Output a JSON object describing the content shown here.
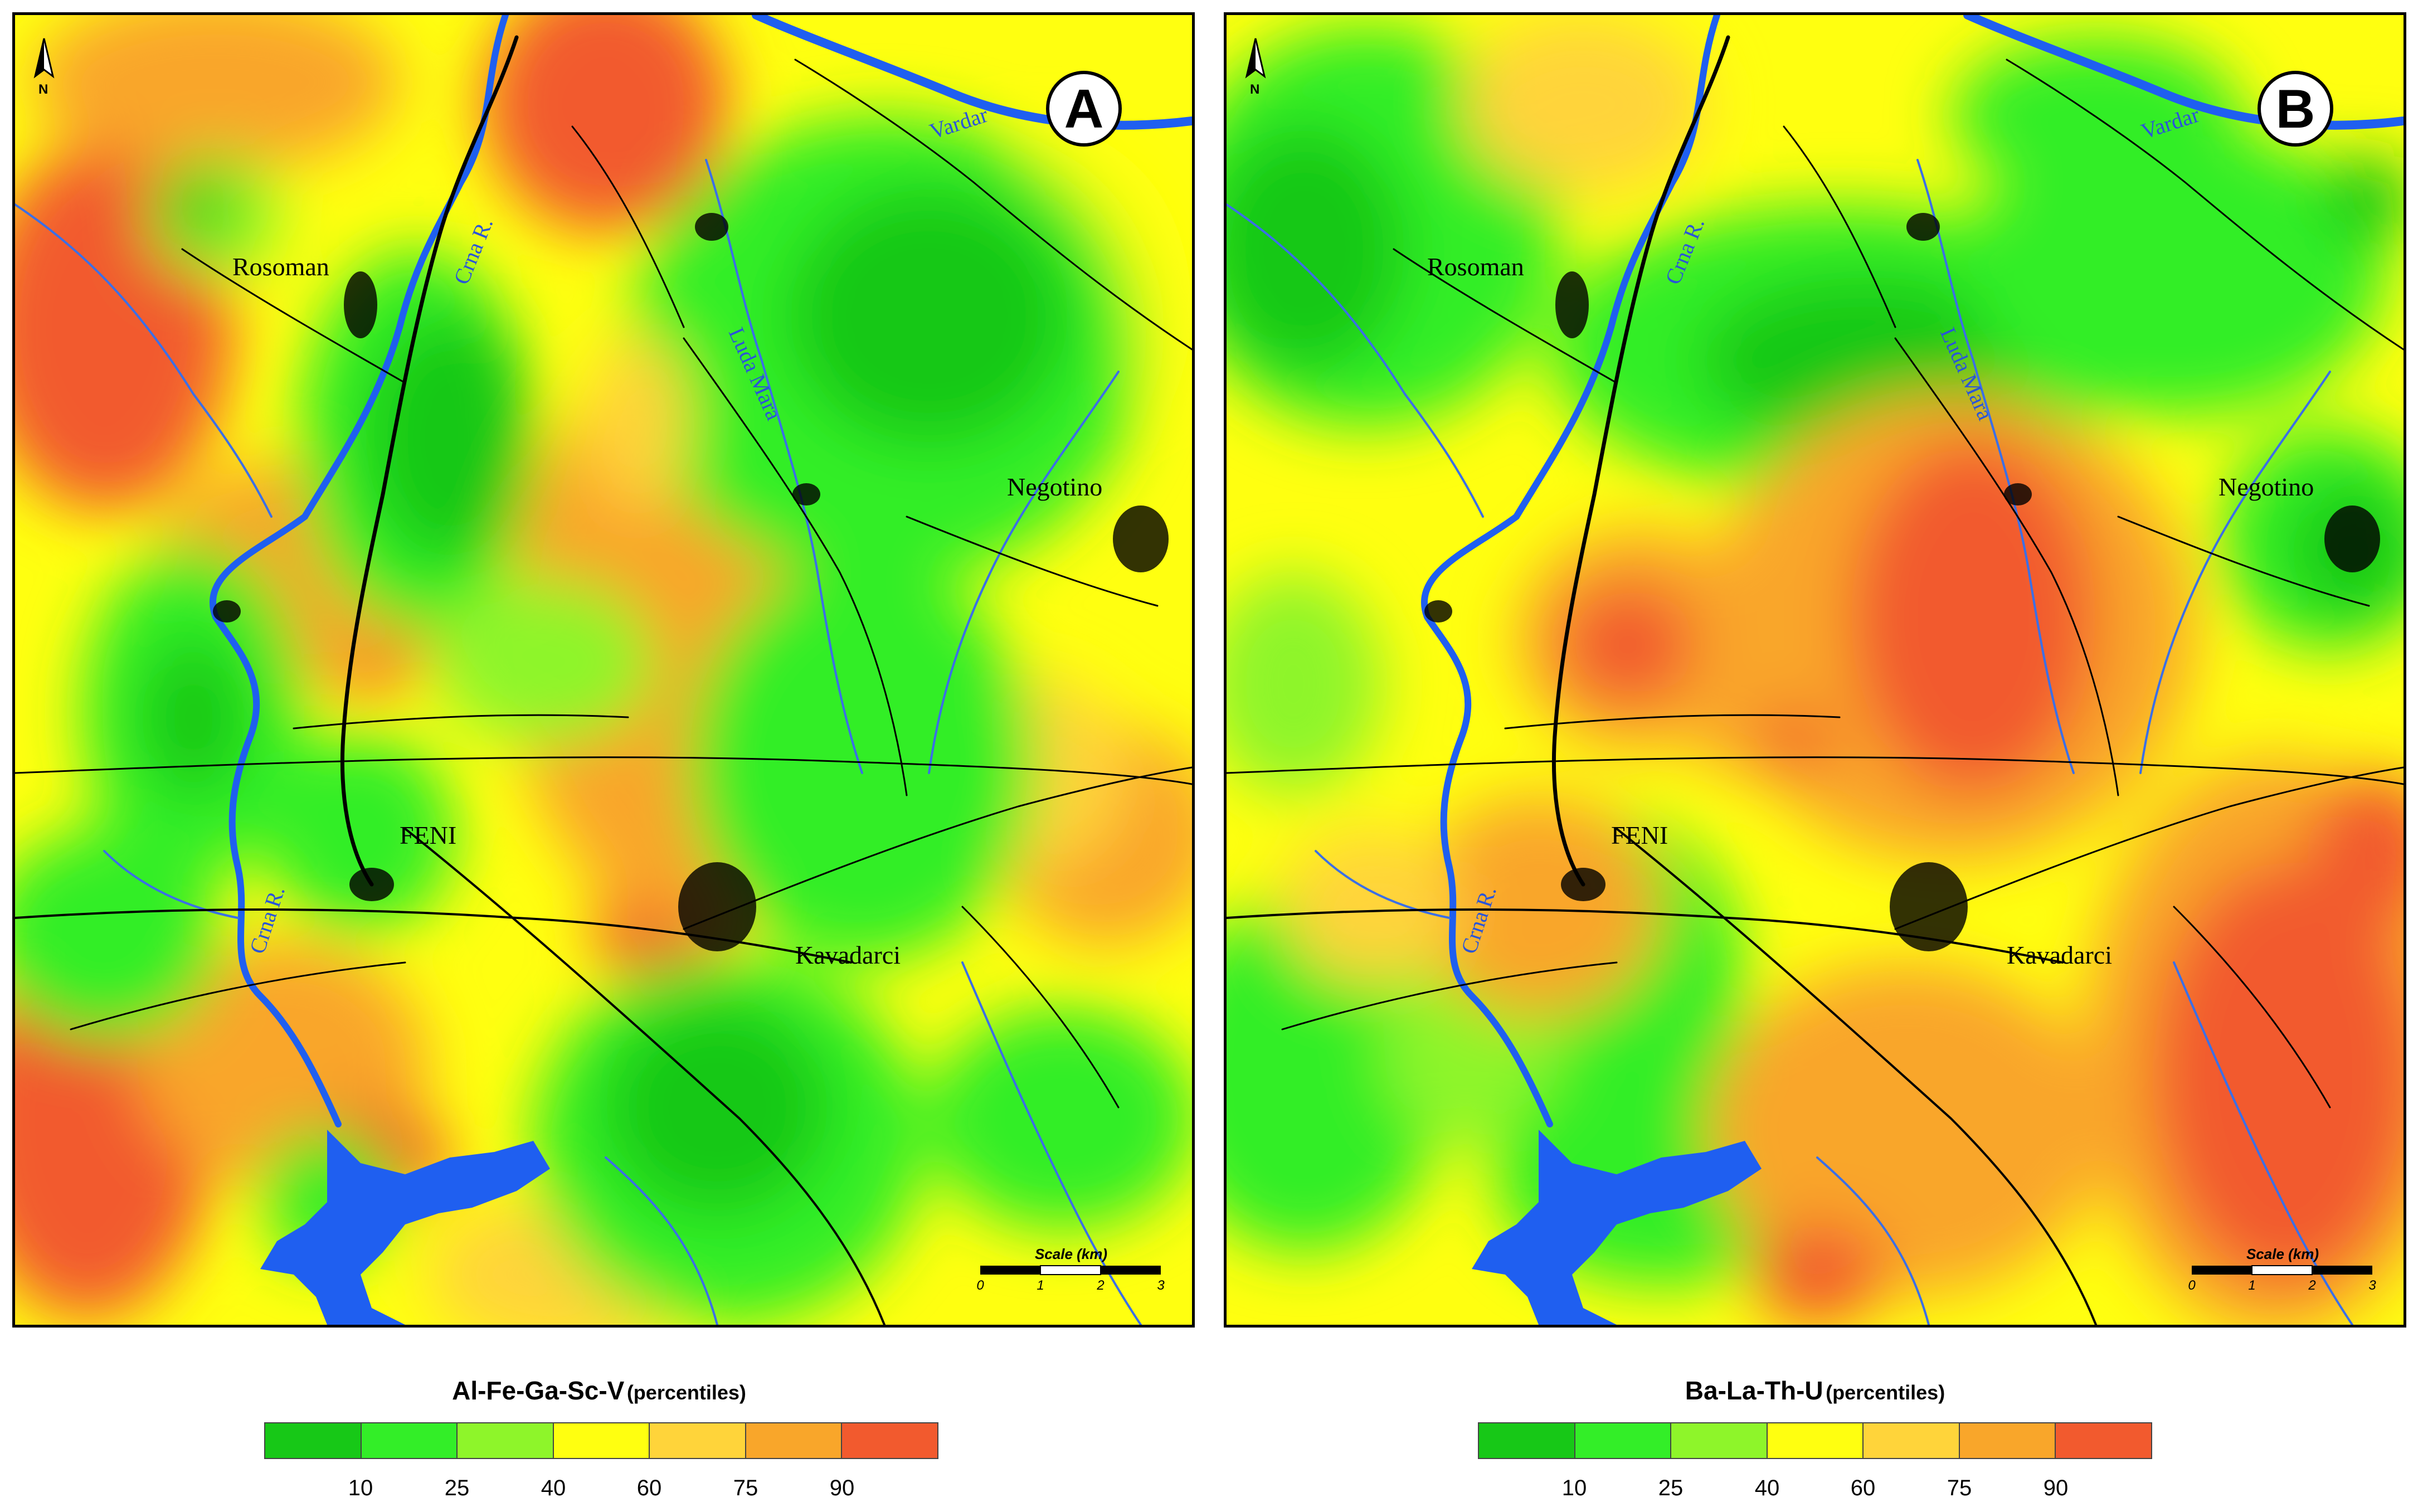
{
  "colors": {
    "class_fill": [
      "#17c817",
      "#33ee28",
      "#8ef52a",
      "#ffff10",
      "#ffd43a",
      "#f9a62a",
      "#f25a2e"
    ],
    "water": "#1f5ff0",
    "river_line": "#3b6fe6",
    "map_lines": "#000000"
  },
  "panels": [
    {
      "badge": "A",
      "places": {
        "rosoman": "Rosoman",
        "negotino": "Negotino",
        "feni": "FENI",
        "kavadarci": "Kavadarci"
      },
      "rivers": {
        "vardar": "Vardar",
        "crna_upper": "Crna R.",
        "crna_lower": "Crna R.",
        "luda_mara": "Luda Mara"
      },
      "north_label": "N",
      "scale": {
        "title": "Scale (km)",
        "ticks": [
          "0",
          "1",
          "2",
          "3"
        ]
      },
      "legend": {
        "title": "Al-Fe-Ga-Sc-V",
        "subtitle": "(percentiles)",
        "ticks": [
          "10",
          "25",
          "40",
          "60",
          "75",
          "90"
        ]
      }
    },
    {
      "badge": "B",
      "places": {
        "rosoman": "Rosoman",
        "negotino": "Negotino",
        "feni": "FENI",
        "kavadarci": "Kavadarci"
      },
      "rivers": {
        "vardar": "Vardar",
        "crna_upper": "Crna R.",
        "crna_lower": "Crna R.",
        "luda_mara": "Luda Mara"
      },
      "north_label": "N",
      "scale": {
        "title": "Scale (km)",
        "ticks": [
          "0",
          "1",
          "2",
          "3"
        ]
      },
      "legend": {
        "title": "Ba-La-Th-U",
        "subtitle": "(percentiles)",
        "ticks": [
          "10",
          "25",
          "40",
          "60",
          "75",
          "90"
        ]
      }
    }
  ]
}
